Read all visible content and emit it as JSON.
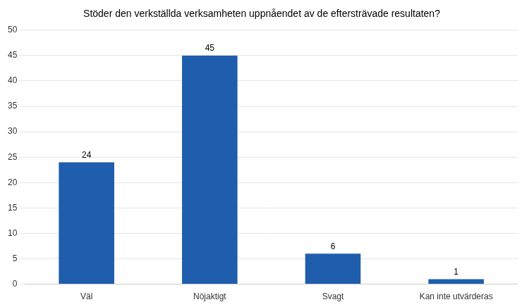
{
  "chart_data": {
    "type": "bar",
    "title": "Stöder den verkställda verksamheten uppnåendet av de eftersträvade resultaten?",
    "categories": [
      "Väl",
      "Nöjaktigt",
      "Svagt",
      "Kan inte utvärderas"
    ],
    "values": [
      24,
      45,
      6,
      1
    ],
    "color": "#1F5DAD",
    "ylim": [
      0,
      50
    ],
    "yticks": [
      0,
      5,
      10,
      15,
      20,
      25,
      30,
      35,
      40,
      45,
      50
    ],
    "grid": true,
    "data_labels": true
  }
}
